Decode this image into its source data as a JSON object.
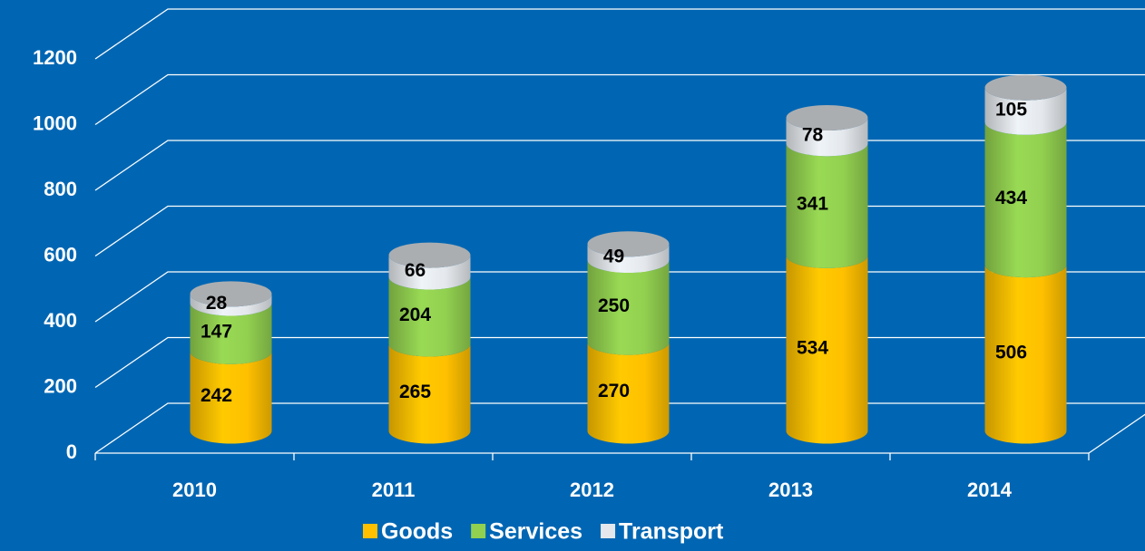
{
  "chart_data": {
    "type": "bar",
    "stacked": true,
    "categories": [
      "2010",
      "2011",
      "2012",
      "2013",
      "2014"
    ],
    "series": [
      {
        "name": "Goods",
        "color": "#ffc000",
        "values": [
          242,
          265,
          270,
          534,
          506
        ]
      },
      {
        "name": "Services",
        "color": "#92d050",
        "values": [
          147,
          204,
          250,
          341,
          434
        ]
      },
      {
        "name": "Transport",
        "color": "#e4e8ec",
        "values": [
          28,
          66,
          49,
          78,
          105
        ]
      }
    ],
    "ylim": [
      0,
      1200
    ],
    "yticks": [
      0,
      200,
      400,
      600,
      800,
      1000,
      1200
    ],
    "grid": true,
    "legend": "bottom"
  }
}
